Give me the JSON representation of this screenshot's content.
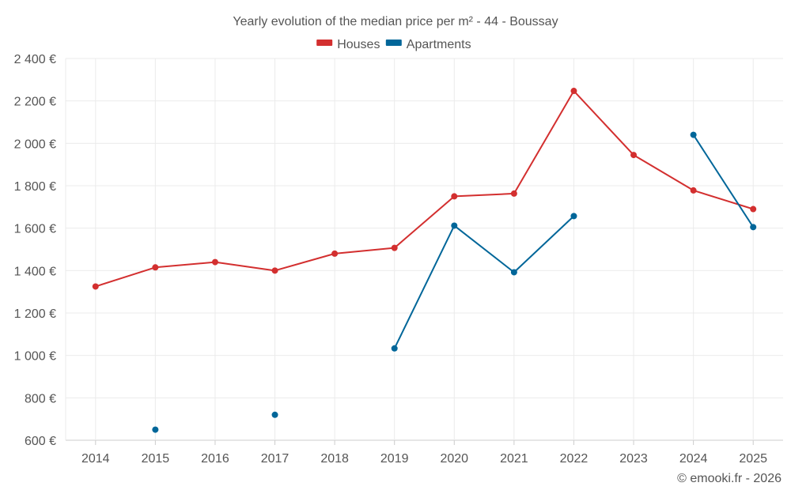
{
  "chart_data": {
    "type": "line",
    "title": "Yearly evolution of the median price per m² - 44 - Boussay",
    "xlabel": "",
    "ylabel": "",
    "categories": [
      "2014",
      "2015",
      "2016",
      "2017",
      "2018",
      "2019",
      "2020",
      "2021",
      "2022",
      "2023",
      "2024",
      "2025"
    ],
    "ylim": [
      600,
      2400
    ],
    "yticks": [
      600,
      800,
      1000,
      1200,
      1400,
      1600,
      1800,
      2000,
      2200,
      2400
    ],
    "ytick_labels": [
      "600 €",
      "800 €",
      "1 000 €",
      "1 200 €",
      "1 400 €",
      "1 600 €",
      "1 800 €",
      "2 000 €",
      "2 200 €",
      "2 400 €"
    ],
    "grid": true,
    "legend_position": "top-center",
    "series": [
      {
        "name": "Houses",
        "color": "#d32f2f",
        "values": [
          1325,
          1415,
          1440,
          1400,
          1480,
          1507,
          1750,
          1763,
          2247,
          1945,
          1778,
          1690
        ]
      },
      {
        "name": "Apartments",
        "color": "#006699",
        "values": [
          null,
          650,
          null,
          720,
          null,
          1033,
          1612,
          1392,
          1657,
          null,
          2040,
          1605
        ]
      }
    ]
  },
  "credit": "© emooki.fr - 2026"
}
